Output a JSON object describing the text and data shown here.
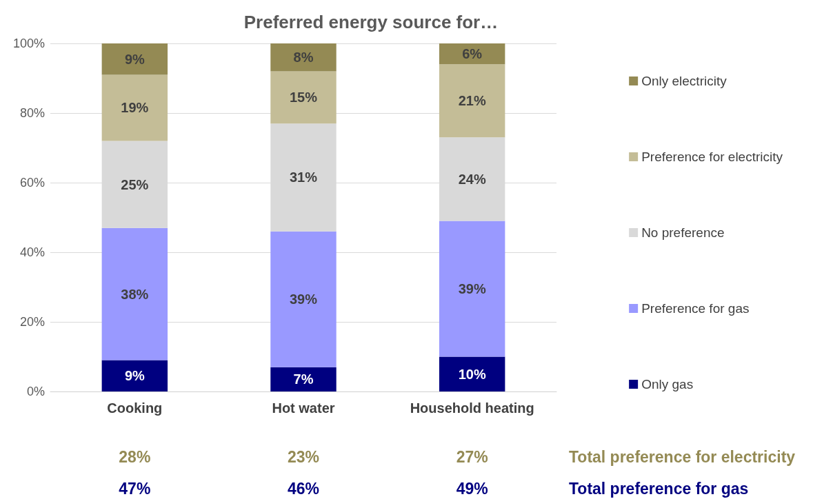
{
  "chart_data": {
    "type": "bar",
    "title": "Preferred energy source for…",
    "stacked": true,
    "categories": [
      "Cooking",
      "Hot water",
      "Household heating"
    ],
    "series": [
      {
        "name": "Only gas",
        "color": "#000080",
        "values": [
          9,
          7,
          10
        ],
        "value_labels": [
          "9%",
          "7%",
          "10%"
        ]
      },
      {
        "name": "Preference for gas",
        "color": "#9999ff",
        "values": [
          38,
          39,
          39
        ],
        "value_labels": [
          "38%",
          "39%",
          "39%"
        ]
      },
      {
        "name": "No preference",
        "color": "#d9d9d9",
        "values": [
          25,
          31,
          24
        ],
        "value_labels": [
          "25%",
          "31%",
          "24%"
        ]
      },
      {
        "name": "Preference for electricity",
        "color": "#c4bd97",
        "values": [
          19,
          15,
          21
        ],
        "value_labels": [
          "19%",
          "15%",
          "21%"
        ]
      },
      {
        "name": "Only electricity",
        "color": "#948a54",
        "values": [
          9,
          8,
          6
        ],
        "value_labels": [
          "9%",
          "8%",
          "6%"
        ]
      }
    ],
    "ylim": [
      0,
      100
    ],
    "yticks": [
      {
        "value": 0,
        "label": "0%"
      },
      {
        "value": 20,
        "label": "20%"
      },
      {
        "value": 40,
        "label": "40%"
      },
      {
        "value": 60,
        "label": "60%"
      },
      {
        "value": 80,
        "label": "80%"
      },
      {
        "value": 100,
        "label": "100%"
      }
    ],
    "grid": "y",
    "legend": "right",
    "annotations": [
      "28%",
      "23%",
      "27%",
      "Total preference for electricity",
      "47%",
      "46%",
      "49%",
      "Total preference for gas"
    ]
  }
}
